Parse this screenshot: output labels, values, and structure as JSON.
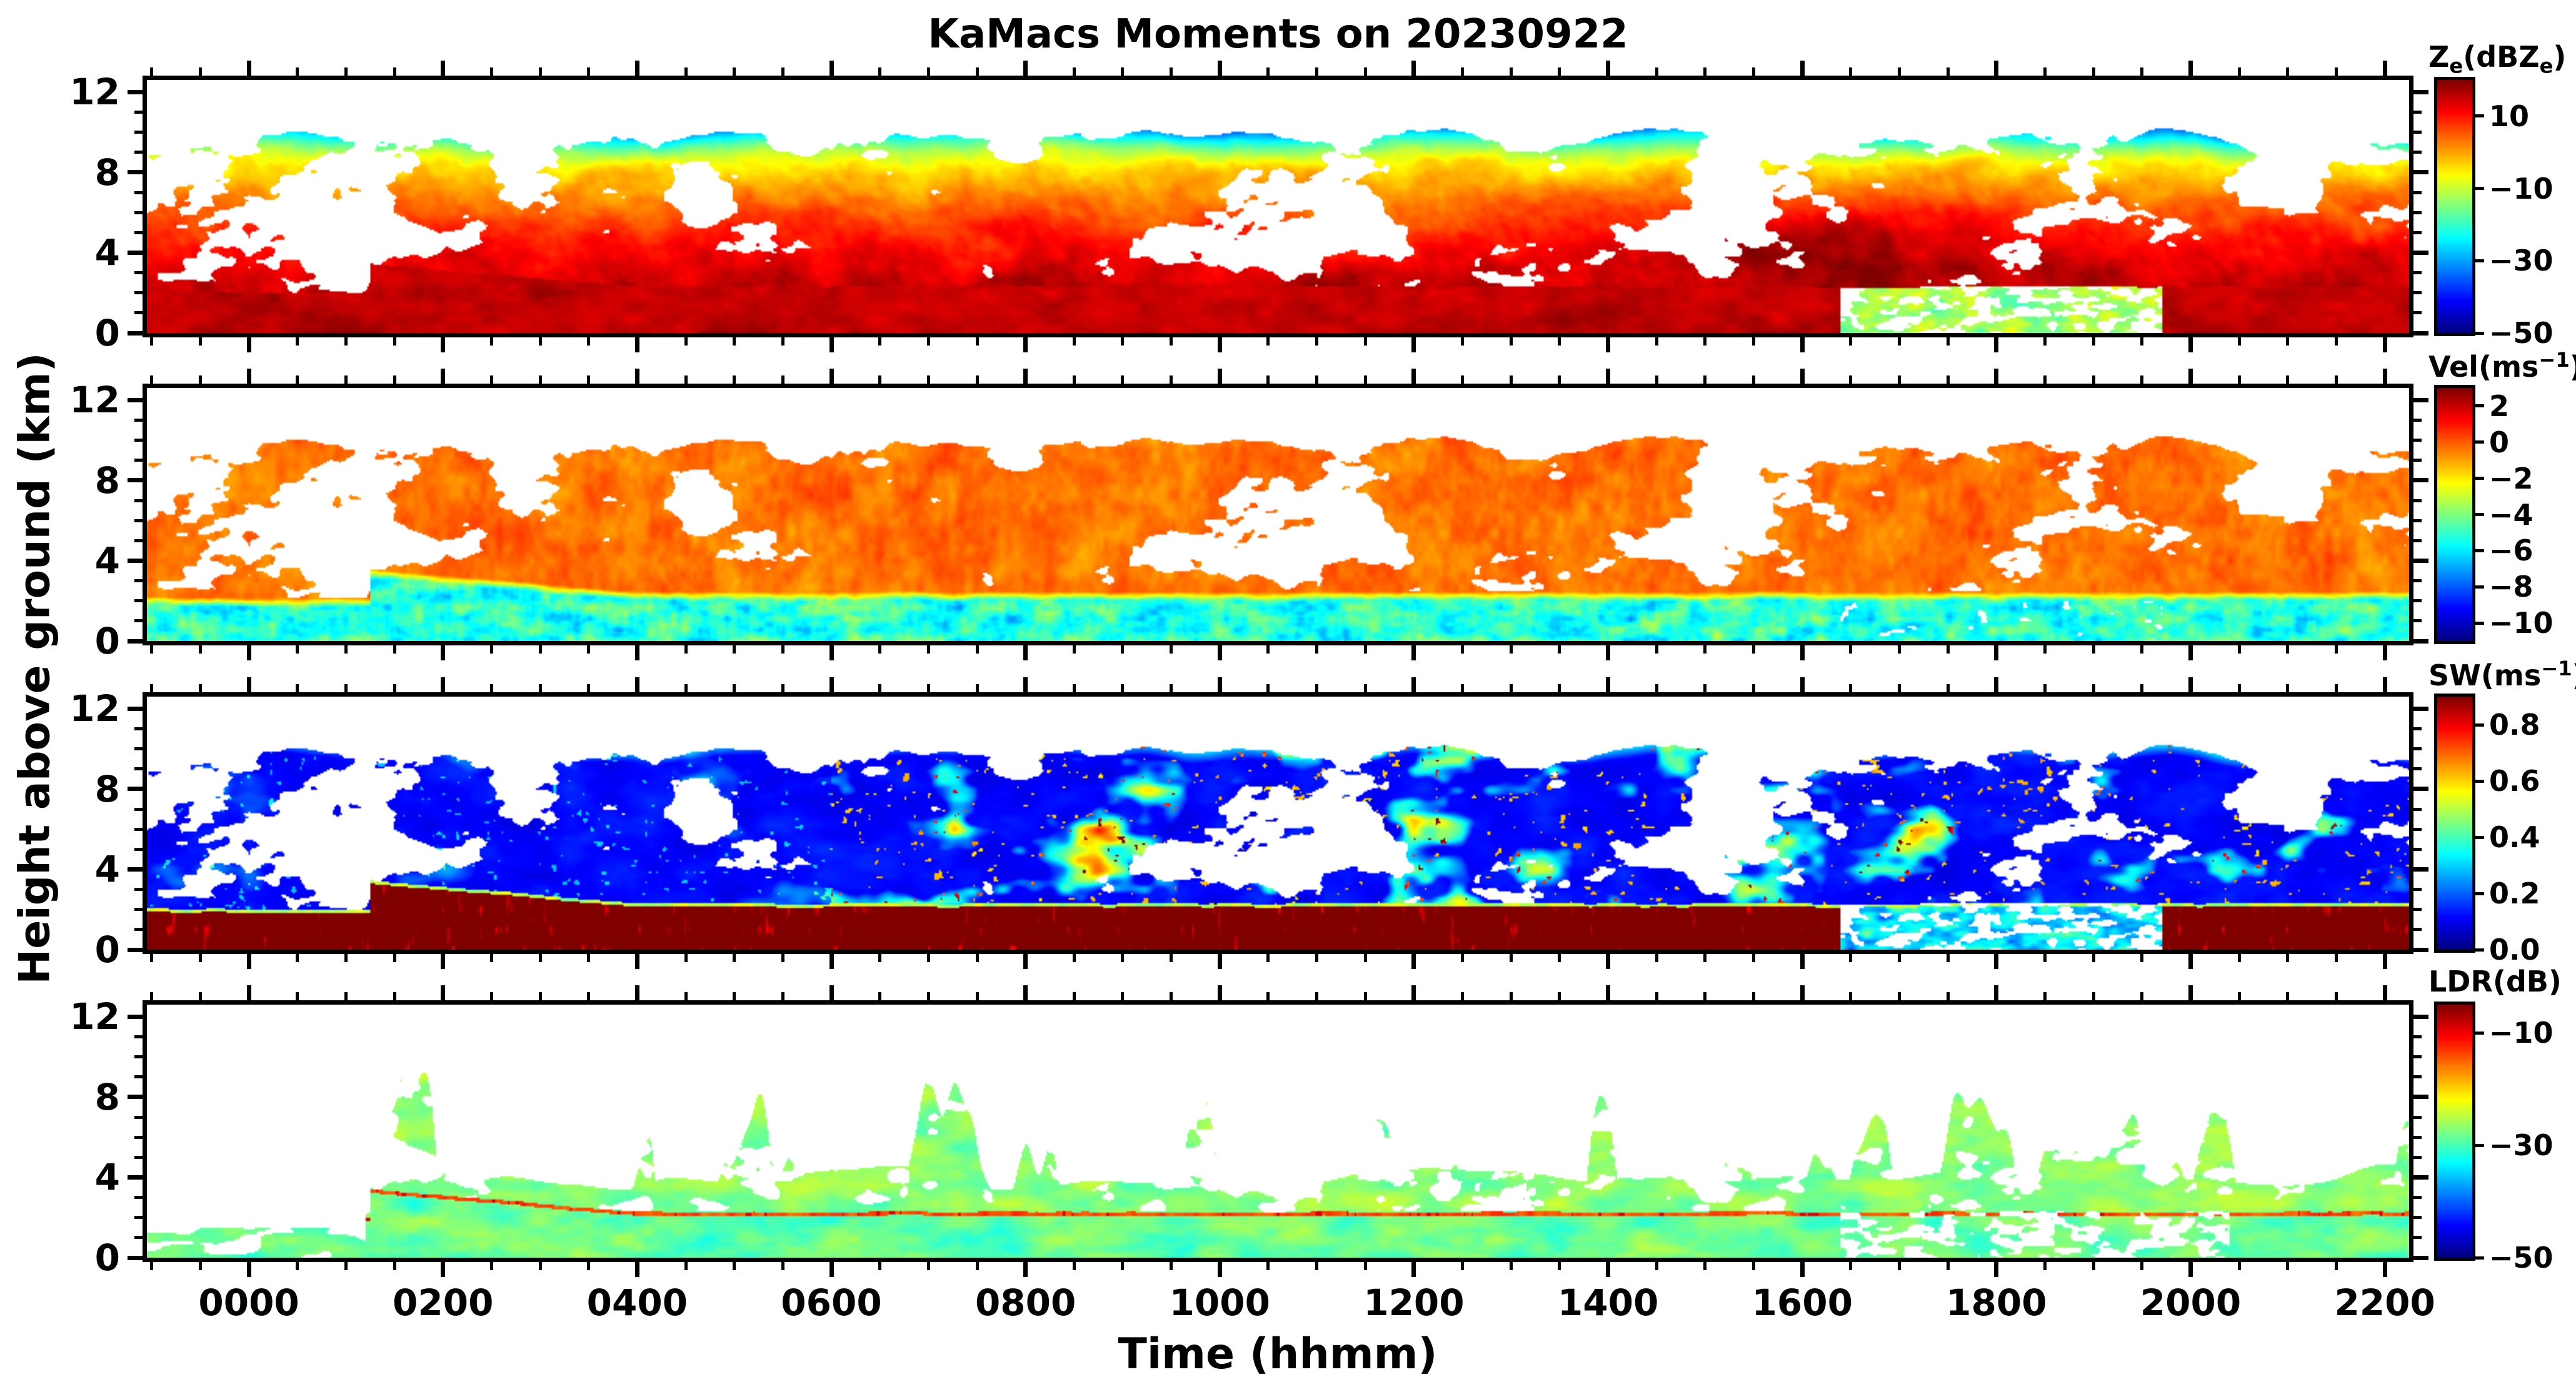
{
  "figure": {
    "title": "KaMacs Moments on 20230922",
    "xlabel": "Time (hhmm)",
    "ylabel": "Height above ground (km)"
  },
  "chart_data": {
    "type": "heatmap",
    "title": "KaMacs Moments on 20230922",
    "xlabel": "Time (hhmm)",
    "ylabel": "Height above ground (km)",
    "colormap": "jet",
    "x_axis": {
      "range_hours": [
        -1.05,
        22.25
      ],
      "major_ticks": [
        0,
        2,
        4,
        6,
        8,
        10,
        12,
        14,
        16,
        18,
        20,
        22
      ],
      "major_tick_labels": [
        "0000",
        "0200",
        "0400",
        "0600",
        "0800",
        "1000",
        "1200",
        "1400",
        "1600",
        "1800",
        "2000",
        "2200"
      ],
      "minor_step_hours": 0.5
    },
    "y_axis": {
      "range_km": [
        0,
        12.6
      ],
      "major_ticks": [
        0,
        4,
        8,
        12
      ],
      "major_tick_labels": [
        "0",
        "4",
        "8",
        "12"
      ],
      "minor_step_km": 1
    },
    "panels": [
      {
        "id": "ze",
        "variable": "Ze",
        "units": "dBZe",
        "label_segments": [
          {
            "t": "Z"
          },
          {
            "t": "e",
            "s": "sub"
          },
          {
            "t": "(dBZ"
          },
          {
            "t": "e",
            "s": "sub"
          },
          {
            "t": ")"
          }
        ],
        "vmin": -50,
        "vmax": 20,
        "colorbar_tick_values": [
          10,
          -10,
          -30,
          -50
        ],
        "colorbar_tick_labels": [
          "10",
          "−10",
          "−30",
          "−50"
        ]
      },
      {
        "id": "vel",
        "variable": "Vel",
        "units": "m/s",
        "label_segments": [
          {
            "t": "Vel(ms"
          },
          {
            "t": "−1",
            "s": "sup"
          },
          {
            "t": ")"
          }
        ],
        "vmin": -11,
        "vmax": 3,
        "colorbar_tick_values": [
          2,
          0,
          -2,
          -4,
          -6,
          -8,
          -10
        ],
        "colorbar_tick_labels": [
          "2",
          "0",
          "−2",
          "−4",
          "−6",
          "−8",
          "−10"
        ]
      },
      {
        "id": "sw",
        "variable": "SW",
        "units": "m/s",
        "label_segments": [
          {
            "t": "SW(ms"
          },
          {
            "t": "−1",
            "s": "sup"
          },
          {
            "t": ")"
          }
        ],
        "vmin": 0,
        "vmax": 0.9,
        "colorbar_tick_values": [
          0.8,
          0.6,
          0.4,
          0.2,
          0.0
        ],
        "colorbar_tick_labels": [
          "0.8",
          "0.6",
          "0.4",
          "0.2",
          "0.0"
        ]
      },
      {
        "id": "ldr",
        "variable": "LDR",
        "units": "dB",
        "label_segments": [
          {
            "t": "LDR(dB)"
          }
        ],
        "vmin": -50,
        "vmax": -5,
        "colorbar_tick_values": [
          -10,
          -30,
          -50
        ],
        "colorbar_tick_labels": [
          "−10",
          "−30",
          "−50"
        ]
      }
    ],
    "scene": {
      "cloud_top_km": 10.4,
      "cloud_top_variability_km": 1.0,
      "surface_layer_top_km": 2.0,
      "melting_line_start_hour": 1.25,
      "melting_line_start_km": 3.45,
      "melting_line_min_km": 2.3,
      "melting_line_descent_km_per_hour": 0.42,
      "bright_band_offset_km": 0.12,
      "sparse_cloud_before_hour": 1.35,
      "weak_echo_hours": [
        16.4,
        19.7
      ],
      "ldr_plume_base_km": 4.0,
      "enhanced_ze_blob": {
        "hour": 16.4,
        "km": 4.3,
        "amp_db": 7,
        "sigma_hour": 1.3,
        "sigma_km": 1.6
      }
    }
  }
}
